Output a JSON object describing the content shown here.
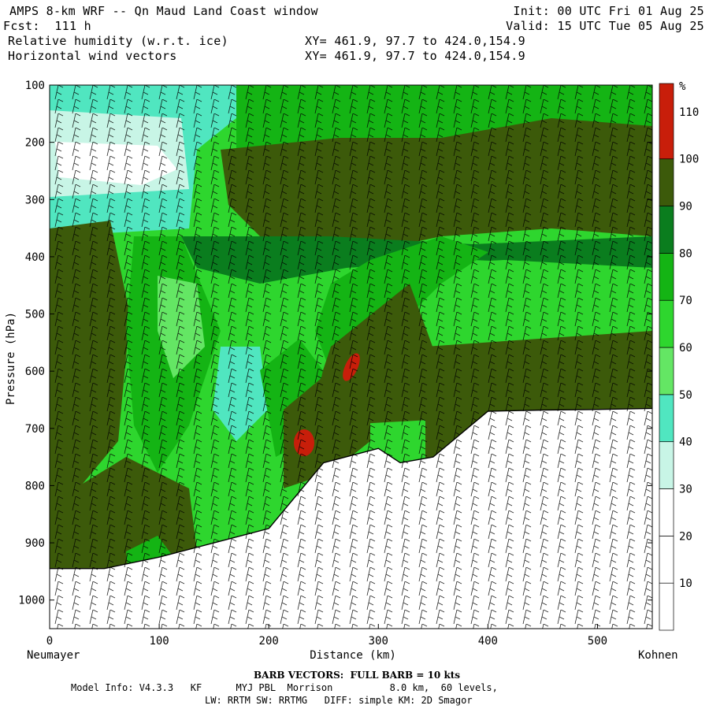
{
  "header": {
    "title": "AMPS 8-km WRF -- Qn Maud Land Coast window",
    "forecast": "Fcst:  111 h",
    "field1": "Relative humidity (w.r.t. ice)",
    "field2": "Horizontal wind vectors",
    "xy1": "XY= 461.9, 97.7 to 424.0,154.9",
    "xy2": "XY= 461.9, 97.7 to 424.0,154.9",
    "init": "Init: 00 UTC Fri 01 Aug 25",
    "valid": "Valid: 15 UTC Tue 05 Aug 25"
  },
  "footer": {
    "barb": "BARB VECTORS:  FULL BARB = 10 kts",
    "model_info": "Model Info: V4.3.3   KF      MYJ PBL  Morrison          8.0 km,  60 levels,",
    "physics": "LW: RRTM SW: RRTMG   DIFF: simple KM: 2D Smagor"
  },
  "chart_data": {
    "type": "heatmap",
    "xlabel": "Distance (km)",
    "ylabel": "Pressure (hPa)",
    "xlim": [
      0,
      550
    ],
    "ylim": [
      1050,
      100
    ],
    "x_ticks": [
      0,
      100,
      200,
      300,
      400,
      500
    ],
    "y_ticks": [
      100,
      200,
      300,
      400,
      500,
      600,
      700,
      800,
      900,
      1000
    ],
    "left_endpoint": "Neumayer",
    "right_endpoint": "Kohnen",
    "colorbar": {
      "unit": "%",
      "levels": [
        10,
        20,
        30,
        40,
        50,
        60,
        70,
        80,
        90,
        100,
        110
      ],
      "colors": [
        "#ffffff",
        "#ffffff",
        "#ffffff",
        "#c8f5e6",
        "#50e6c0",
        "#64e664",
        "#2ed62e",
        "#14b414",
        "#0a7d1e",
        "#3c5a0a",
        "#c81e0a"
      ]
    },
    "terrain_hPa": [
      [
        0,
        945
      ],
      [
        50,
        945
      ],
      [
        100,
        925
      ],
      [
        150,
        900
      ],
      [
        200,
        875
      ],
      [
        250,
        760
      ],
      [
        300,
        735
      ],
      [
        320,
        760
      ],
      [
        350,
        750
      ],
      [
        400,
        670
      ],
      [
        450,
        668
      ],
      [
        500,
        667
      ],
      [
        550,
        665
      ]
    ]
  }
}
